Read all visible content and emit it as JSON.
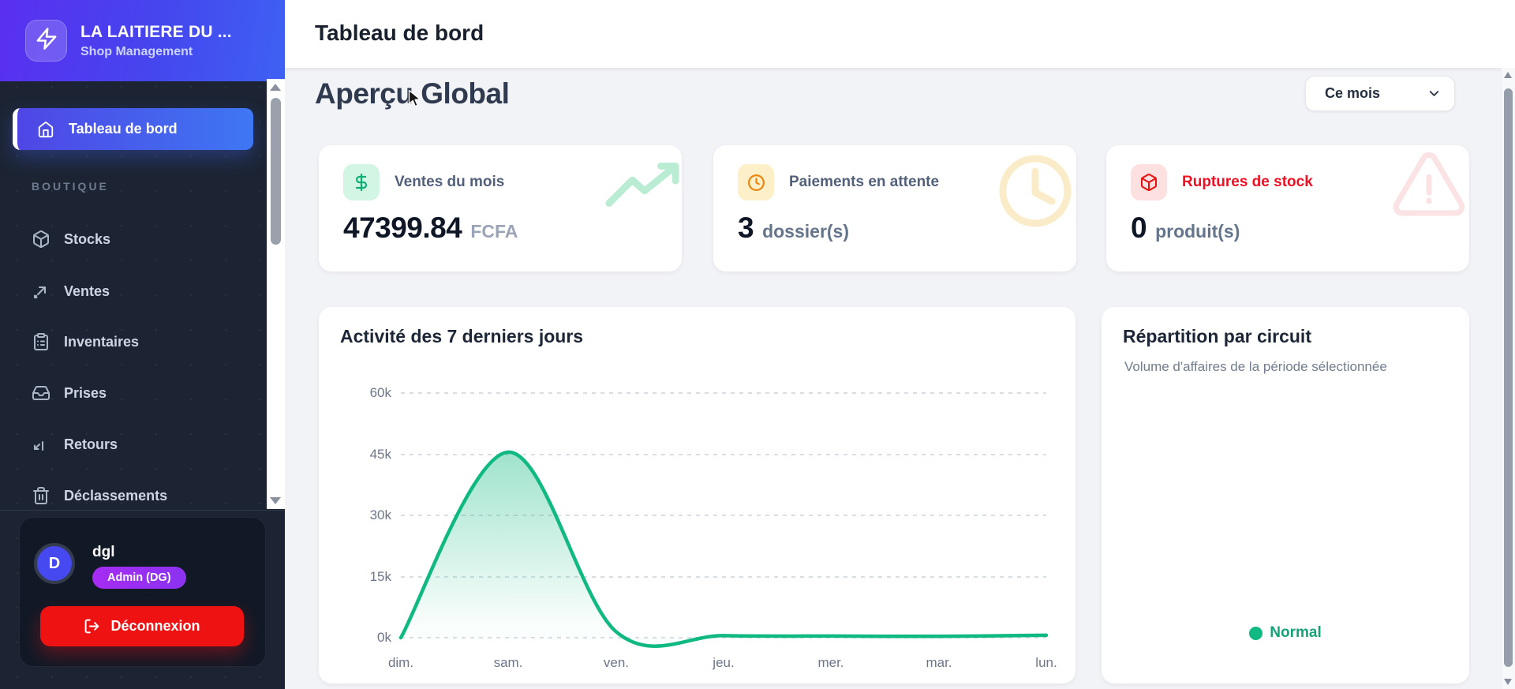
{
  "sidebar": {
    "brand": {
      "title": "LA LAITIERE DU ...",
      "subtitle": "Shop Management",
      "logo_icon": "zap-icon"
    },
    "active_item": {
      "label": "Tableau de bord",
      "icon": "home-icon"
    },
    "section_label": "BOUTIQUE",
    "items": [
      {
        "label": "Stocks",
        "icon": "package-icon"
      },
      {
        "label": "Ventes",
        "icon": "trending-up-icon"
      },
      {
        "label": "Inventaires",
        "icon": "clipboard-list-icon"
      },
      {
        "label": "Prises",
        "icon": "inbox-icon"
      },
      {
        "label": "Retours",
        "icon": "return-arrow-icon"
      },
      {
        "label": "Déclassements",
        "icon": "trash-icon"
      }
    ],
    "user": {
      "initial": "D",
      "name": "dgl",
      "role_badge": "Admin (DG)",
      "logout_label": "Déconnexion",
      "badge_colors": [
        "#a62cf3",
        "#8b32f0"
      ],
      "logout_color": "#ee1212"
    }
  },
  "header": {
    "title": "Tableau de bord"
  },
  "main": {
    "section_title": "Aperçu Global",
    "period_select": {
      "value": "Ce mois"
    },
    "stat_cards": [
      {
        "label": "Ventes du mois",
        "value": "47399.84",
        "unit": "FCFA",
        "icon": "dollar-icon",
        "accent": "#10b981",
        "watermark": "trending-up-icon"
      },
      {
        "label": "Paiements en attente",
        "value": "3",
        "unit": "dossier(s)",
        "icon": "clock-icon",
        "accent": "#f59e0b",
        "watermark": "clock-icon"
      },
      {
        "label": "Ruptures de stock",
        "value": "0",
        "unit": "produit(s)",
        "icon": "package-icon",
        "accent": "#ef1111",
        "watermark": "alert-triangle-icon"
      }
    ],
    "activity_card": {
      "title": "Activité des 7 derniers jours"
    },
    "distribution_card": {
      "title": "Répartition par circuit",
      "subtitle": "Volume d'affaires de la période sélectionnée",
      "legend": [
        {
          "label": "Normal",
          "color": "#10b981"
        }
      ]
    }
  },
  "chart_data": {
    "type": "area",
    "title": "Activité des 7 derniers jours",
    "categories": [
      "dim.",
      "sam.",
      "ven.",
      "jeu.",
      "mer.",
      "mar.",
      "lun."
    ],
    "values": [
      0,
      45500,
      1500,
      500,
      400,
      350,
      600
    ],
    "ylim": [
      0,
      60000
    ],
    "yticks_top_down": [
      "60k",
      "45k",
      "30k",
      "15k",
      "0k"
    ],
    "line_color": "#10b981",
    "fill": "vertical green gradient",
    "grid": "horizontal dashed",
    "xlabel": "",
    "ylabel": ""
  }
}
